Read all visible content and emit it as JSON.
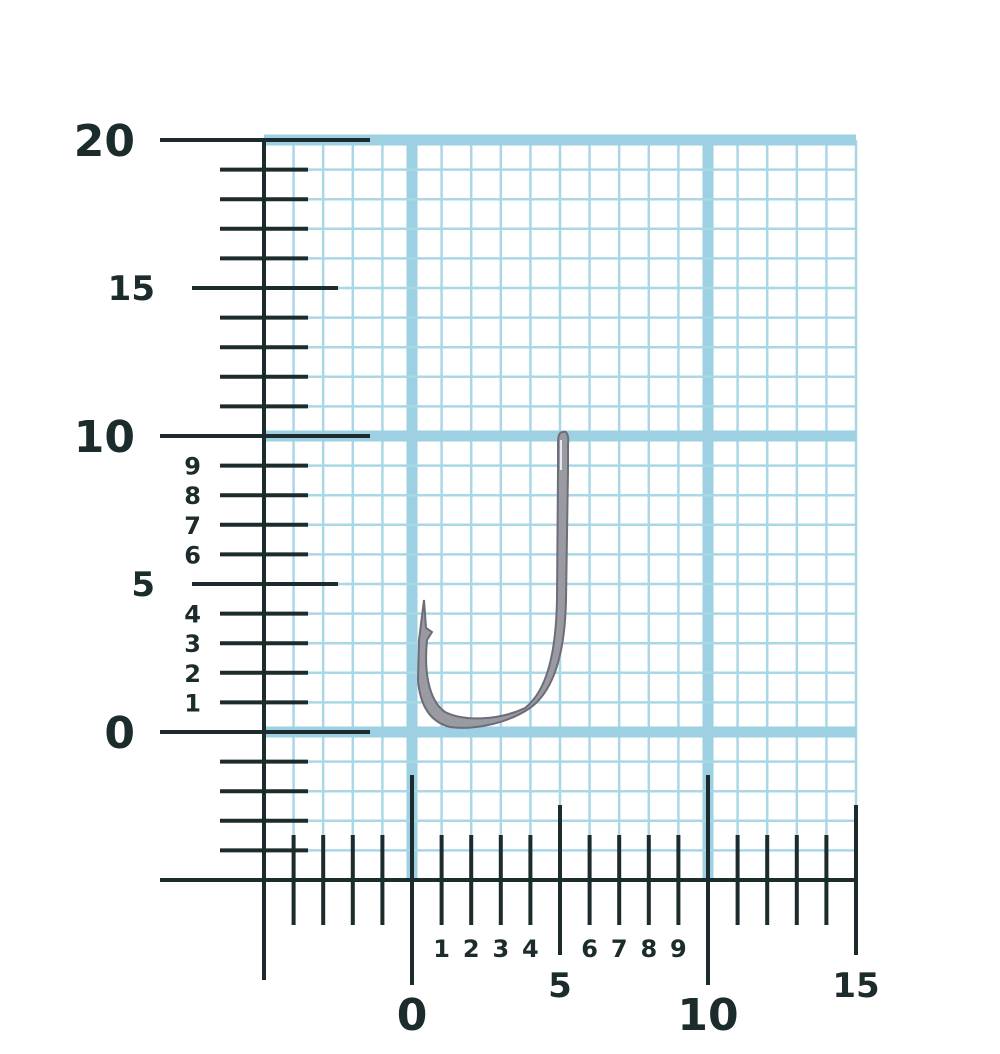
{
  "scale": {
    "unit_min": -5,
    "unit_max_x": 15,
    "unit_max_y": 20,
    "vertical_major_labels": [
      "0",
      "5",
      "10",
      "15",
      "20"
    ],
    "vertical_minor_labels": [
      "1",
      "2",
      "3",
      "4",
      "6",
      "7",
      "8",
      "9"
    ],
    "horizontal_major_labels": [
      "0",
      "5",
      "10",
      "15"
    ],
    "horizontal_minor_labels": [
      "1",
      "2",
      "3",
      "4",
      "6",
      "7",
      "8",
      "9"
    ]
  },
  "colors": {
    "grid": "#a9d7e6",
    "grid_major": "#9dd0e2",
    "ruler": "#1c2b2b",
    "hook": "#8a8a94"
  },
  "hook": {
    "icon": "fishing-hook",
    "height_units": 10.2,
    "width_units": 5
  }
}
